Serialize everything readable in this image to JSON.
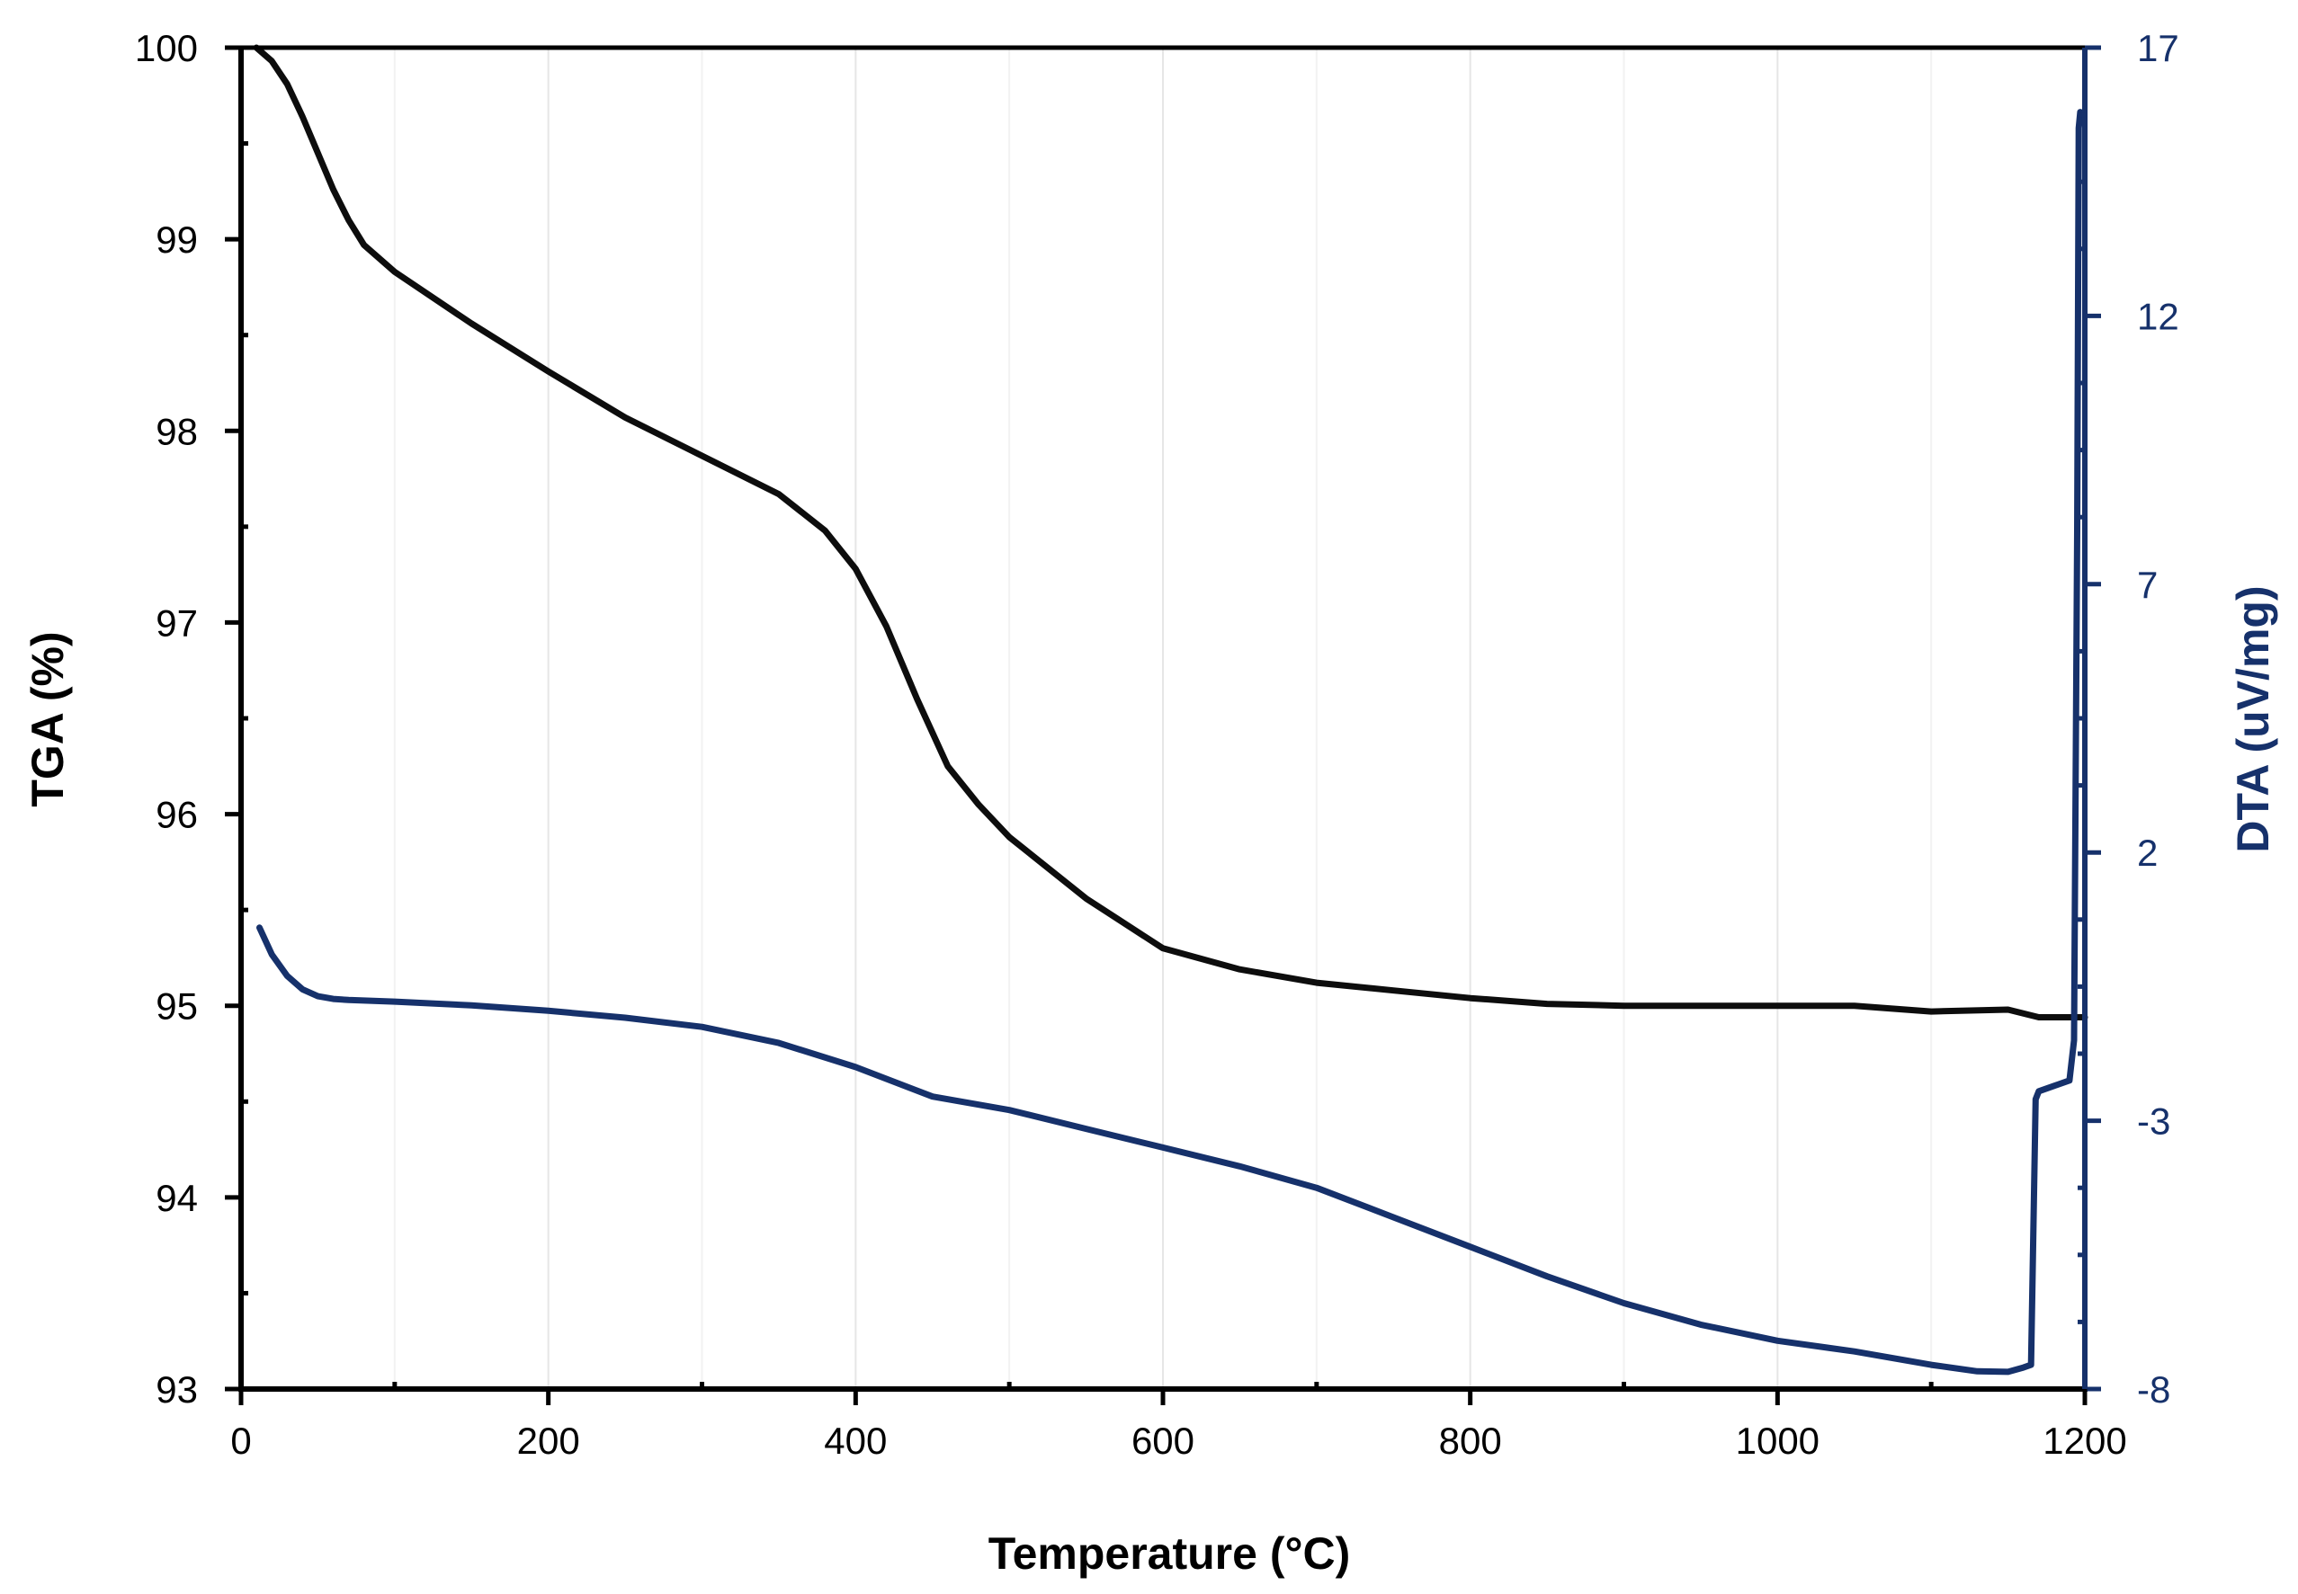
{
  "chart_data": {
    "type": "line",
    "title": "",
    "xlabel": "Temperature (°C)",
    "ylabel": "TGA (%)",
    "y2label": "DTA (uV/mg)",
    "xlim": [
      0,
      1200
    ],
    "ylim": [
      93,
      100
    ],
    "y2lim": [
      -8,
      17
    ],
    "x_ticks": [
      0,
      200,
      400,
      600,
      800,
      1000,
      1200
    ],
    "y_ticks": [
      93,
      94,
      95,
      96,
      97,
      98,
      99,
      100
    ],
    "y2_ticks": [
      -8,
      -3,
      2,
      7,
      12,
      17
    ],
    "grid": "vertical",
    "colors": {
      "tga": "#0d0d0d",
      "dta": "#16316b",
      "axis": "#000000",
      "grid": "#e6e6e6"
    },
    "series": [
      {
        "name": "TGA",
        "axis": "left",
        "x": [
          10,
          20,
          30,
          40,
          50,
          60,
          70,
          80,
          100,
          150,
          200,
          250,
          300,
          350,
          380,
          400,
          420,
          440,
          460,
          480,
          500,
          550,
          600,
          650,
          700,
          750,
          800,
          850,
          900,
          1000,
          1050,
          1100,
          1150,
          1165,
          1170,
          1200
        ],
        "y": [
          100.0,
          99.93,
          99.81,
          99.64,
          99.45,
          99.26,
          99.1,
          98.97,
          98.83,
          98.56,
          98.31,
          98.07,
          97.87,
          97.67,
          97.48,
          97.28,
          96.98,
          96.6,
          96.25,
          96.05,
          95.88,
          95.56,
          95.3,
          95.19,
          95.12,
          95.08,
          95.04,
          95.01,
          95.0,
          95.0,
          95.0,
          94.97,
          94.98,
          94.95,
          94.94,
          94.94
        ]
      },
      {
        "name": "DTA",
        "axis": "right",
        "x": [
          12,
          20,
          30,
          40,
          50,
          60,
          70,
          100,
          150,
          200,
          250,
          300,
          350,
          400,
          450,
          500,
          550,
          600,
          650,
          700,
          750,
          800,
          850,
          900,
          950,
          1000,
          1050,
          1100,
          1130,
          1150,
          1160,
          1165,
          1168,
          1170,
          1180,
          1190,
          1193,
          1195,
          1196,
          1197
        ],
        "y": [
          0.6,
          0.1,
          -0.3,
          -0.55,
          -0.68,
          -0.73,
          -0.75,
          -0.78,
          -0.85,
          -0.95,
          -1.08,
          -1.25,
          -1.55,
          -2.0,
          -2.55,
          -2.8,
          -3.15,
          -3.5,
          -3.85,
          -4.25,
          -4.8,
          -5.35,
          -5.9,
          -6.4,
          -6.8,
          -7.1,
          -7.3,
          -7.55,
          -7.67,
          -7.68,
          -7.6,
          -7.55,
          -2.6,
          -2.45,
          -2.35,
          -2.25,
          -1.5,
          8,
          15.5,
          15.8
        ]
      }
    ]
  }
}
